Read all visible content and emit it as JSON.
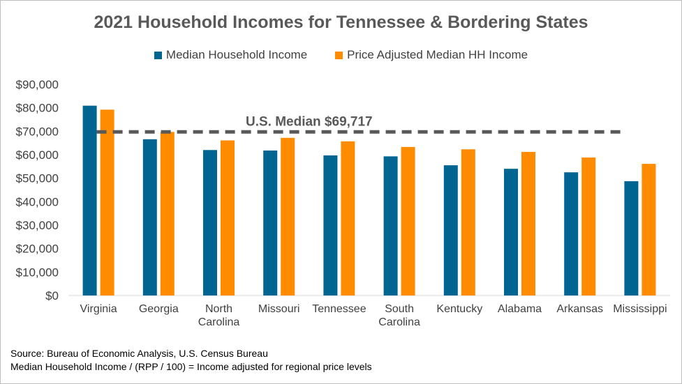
{
  "chart_data": {
    "type": "bar",
    "title": "2021 Household Incomes for Tennessee & Bordering States",
    "categories": [
      [
        "Virginia"
      ],
      [
        "Georgia"
      ],
      [
        "North",
        "Carolina"
      ],
      [
        "Missouri"
      ],
      [
        "Tennessee"
      ],
      [
        "South",
        "Carolina"
      ],
      [
        "Kentucky"
      ],
      [
        "Alabama"
      ],
      [
        "Arkansas"
      ],
      [
        "Mississippi"
      ]
    ],
    "series": [
      {
        "name": "Median Household Income",
        "color": "#006591",
        "values": [
          80900,
          66600,
          62000,
          61800,
          59700,
          59300,
          55500,
          54000,
          52500,
          48700
        ]
      },
      {
        "name": "Price Adjusted Median HH Income",
        "color": "#ff8b00",
        "values": [
          79200,
          69700,
          66100,
          67200,
          65700,
          63300,
          62300,
          61200,
          58800,
          56100
        ]
      }
    ],
    "yticks": [
      "$0",
      "$10,000",
      "$20,000",
      "$30,000",
      "$40,000",
      "$50,000",
      "$60,000",
      "$70,000",
      "$80,000",
      "$90,000"
    ],
    "ylim": [
      0,
      90000
    ],
    "reference_line": {
      "label": "U.S. Median $69,717",
      "value": 69717,
      "color": "#595959"
    },
    "legend_position": "top",
    "source_lines": [
      "Source:  Bureau of Economic Analysis, U.S. Census Bureau",
      "Median Household  Income / (RPP / 100) = Income adjusted  for regional price levels"
    ]
  }
}
